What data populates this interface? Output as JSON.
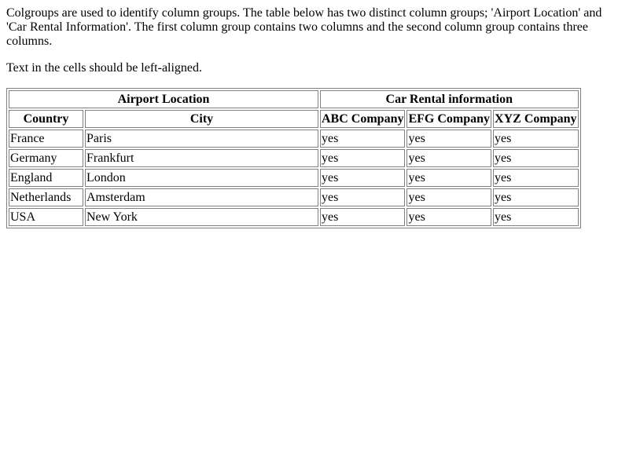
{
  "intro": {
    "paragraph1": "Colgroups are used to identify column groups. The table below has two distinct column groups; 'Airport Location' and 'Car Rental Information'. The first column group contains two columns and the second column group contains three columns.",
    "paragraph2": "Text in the cells should be left-aligned."
  },
  "table": {
    "group_headers": [
      "Airport Location",
      "Car Rental information"
    ],
    "column_headers": [
      "Country",
      "City",
      "ABC Company",
      "EFG Company",
      "XYZ Company"
    ],
    "rows": [
      [
        "France",
        "Paris",
        "yes",
        "yes",
        "yes"
      ],
      [
        "Germany",
        "Frankfurt",
        "yes",
        "yes",
        "yes"
      ],
      [
        "England",
        "London",
        "yes",
        "yes",
        "yes"
      ],
      [
        "Netherlands",
        "Amsterdam",
        "yes",
        "yes",
        "yes"
      ],
      [
        "USA",
        "New York",
        "yes",
        "yes",
        "yes"
      ]
    ]
  }
}
